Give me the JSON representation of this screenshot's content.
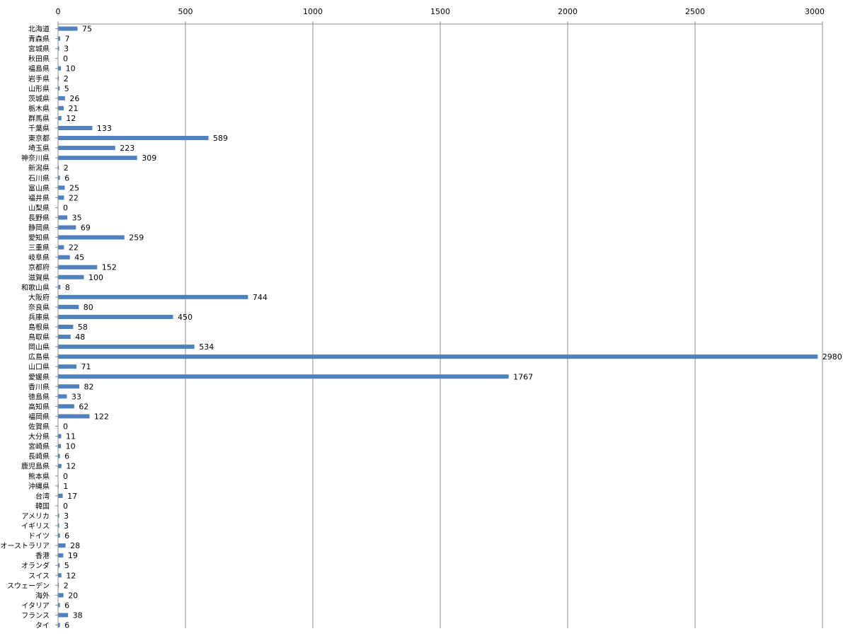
{
  "chart_data": {
    "type": "bar",
    "orientation": "horizontal",
    "xlim": [
      0,
      3000
    ],
    "x_ticks": [
      0,
      500,
      1000,
      1500,
      2000,
      2500,
      3000
    ],
    "x_axis_position": "top",
    "grid": "vertical-major",
    "legend": "none",
    "data_labels": true,
    "bar_color": "#4f81bd",
    "categories": [
      "北海道",
      "青森県",
      "宮城県",
      "秋田県",
      "福島県",
      "岩手県",
      "山形県",
      "茨城県",
      "栃木県",
      "群馬県",
      "千葉県",
      "東京都",
      "埼玉県",
      "神奈川県",
      "新潟県",
      "石川県",
      "富山県",
      "福井県",
      "山梨県",
      "長野県",
      "静岡県",
      "愛知県",
      "三重県",
      "岐阜県",
      "京都府",
      "滋賀県",
      "和歌山県",
      "大阪府",
      "奈良県",
      "兵庫県",
      "島根県",
      "鳥取県",
      "岡山県",
      "広島県",
      "山口県",
      "愛媛県",
      "香川県",
      "徳島県",
      "高知県",
      "福岡県",
      "佐賀県",
      "大分県",
      "宮崎県",
      "長崎県",
      "鹿児島県",
      "熊本県",
      "沖縄県",
      "台湾",
      "韓国",
      "アメリカ",
      "イギリス",
      "ドイツ",
      "オーストラリア",
      "香港",
      "オランダ",
      "スイス",
      "スウェーデン",
      "海外",
      "イタリア",
      "フランス",
      "タイ"
    ],
    "values": [
      75,
      7,
      3,
      0,
      10,
      2,
      5,
      26,
      21,
      12,
      133,
      589,
      223,
      309,
      2,
      6,
      25,
      22,
      0,
      35,
      69,
      259,
      22,
      45,
      152,
      100,
      8,
      744,
      80,
      450,
      58,
      48,
      534,
      2980,
      71,
      1767,
      82,
      33,
      62,
      122,
      0,
      11,
      10,
      6,
      12,
      0,
      1,
      17,
      0,
      3,
      3,
      6,
      28,
      19,
      5,
      12,
      2,
      20,
      6,
      38,
      6
    ]
  }
}
